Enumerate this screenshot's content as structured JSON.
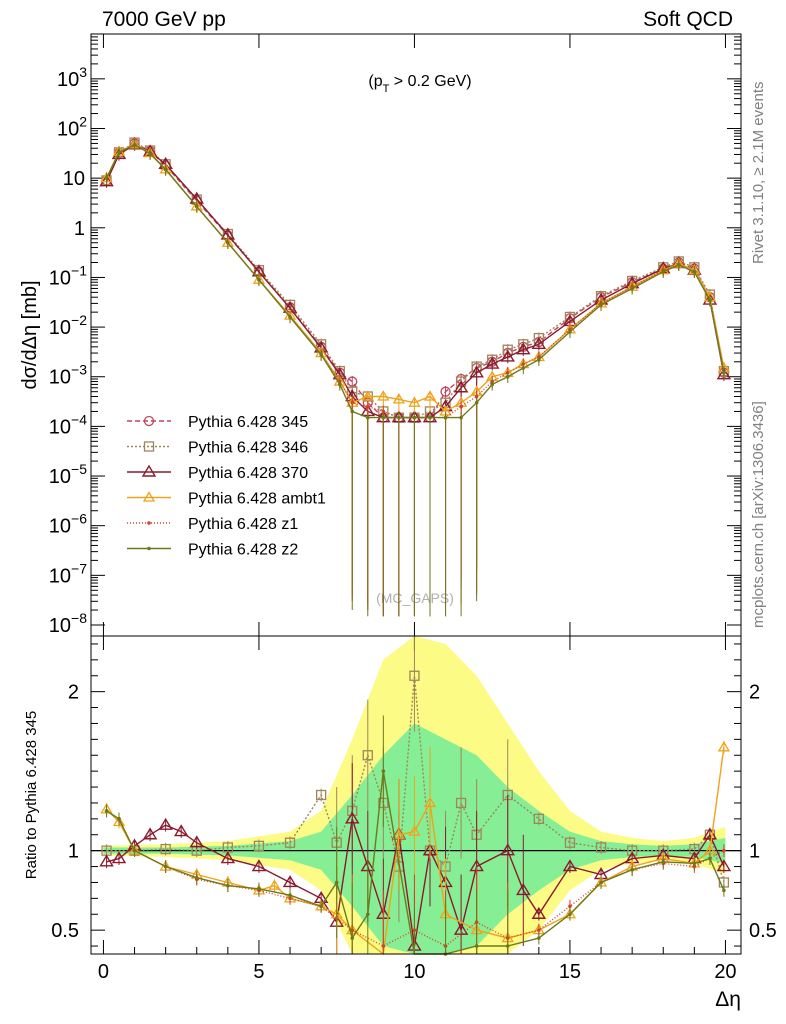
{
  "header": {
    "left": "7000 GeV pp",
    "right": "Soft QCD"
  },
  "side": {
    "rivet": "Rivet 3.1.10, ≥ 2.1M events",
    "source": "mcplots.cern.ch [arXiv:1306.3436]"
  },
  "annotation": {
    "cut_pre": "(p",
    "cut_sub": "T",
    "cut_post": " > 0.2 GeV)",
    "watermark": "(MC_GAPS)"
  },
  "colors": {
    "band_inner": "#86ef96",
    "band_outer": "#fbfb86"
  },
  "chart_data": [
    {
      "type": "line",
      "panel": "main",
      "ylabel": "dσ/dΔη [mb]",
      "yscale": "log",
      "xlim": [
        -0.4,
        20.5
      ],
      "ylim": [
        6e-09,
        8000
      ],
      "ytick_labels": [
        {
          "y": 1000,
          "base": "10",
          "exp": "3"
        },
        {
          "y": 100,
          "base": "10",
          "exp": "2"
        },
        {
          "y": 10,
          "base": "10",
          "exp": ""
        },
        {
          "y": 1,
          "base": "1",
          "exp": ""
        },
        {
          "y": 0.1,
          "base": "10",
          "exp": "−1"
        },
        {
          "y": 0.01,
          "base": "10",
          "exp": "−2"
        },
        {
          "y": 0.001,
          "base": "10",
          "exp": "−3"
        },
        {
          "y": 0.0001,
          "base": "10",
          "exp": "−4"
        },
        {
          "y": 1e-05,
          "base": "10",
          "exp": "−5"
        },
        {
          "y": 1e-06,
          "base": "10",
          "exp": "−6"
        },
        {
          "y": 1e-07,
          "base": "10",
          "exp": "−7"
        },
        {
          "y": 1e-08,
          "base": "10",
          "exp": "−8"
        }
      ],
      "legend_position": "lower-left",
      "series": [
        {
          "name": "Pythia 6.428 345",
          "color": "#c0445e",
          "dash": "5,3",
          "marker": "circle",
          "x": [
            0.1,
            0.5,
            1.0,
            1.5,
            2.0,
            3.0,
            4.0,
            5.0,
            6.0,
            7.0,
            7.6,
            8.0,
            8.5,
            9.0,
            9.5,
            10.0,
            10.5,
            11.0,
            11.5,
            12.0,
            12.5,
            13.0,
            13.5,
            14.0,
            15.0,
            16.0,
            17.0,
            18.0,
            18.5,
            19.0,
            19.5,
            19.95
          ],
          "y": [
            9,
            32,
            50,
            35,
            18,
            3.5,
            0.7,
            0.13,
            0.025,
            0.004,
            0.0012,
            0.0008,
            0.0003,
            0.00015,
            0.00015,
            0.00015,
            0.00015,
            0.0005,
            0.0009,
            0.0015,
            0.002,
            0.003,
            0.004,
            0.005,
            0.015,
            0.04,
            0.08,
            0.15,
            0.2,
            0.15,
            0.04,
            0.0012
          ]
        },
        {
          "name": "Pythia 6.428 346",
          "color": "#a0855a",
          "dash": "2,2",
          "marker": "square",
          "x": [
            0.1,
            0.5,
            1.0,
            1.5,
            2.0,
            3.0,
            4.0,
            5.0,
            6.0,
            7.0,
            7.6,
            8.0,
            8.5,
            9.0,
            9.5,
            10.0,
            10.5,
            11.0,
            11.5,
            12.0,
            12.5,
            13.0,
            13.5,
            14.0,
            15.0,
            16.0,
            17.0,
            18.0,
            18.5,
            19.0,
            19.5,
            19.95
          ],
          "y": [
            9,
            33,
            52,
            36,
            19,
            3.7,
            0.75,
            0.14,
            0.028,
            0.0045,
            0.0013,
            0.0005,
            0.0004,
            0.0002,
            0.00015,
            0.00015,
            0.0002,
            0.0003,
            0.0008,
            0.0016,
            0.0022,
            0.0035,
            0.0045,
            0.006,
            0.016,
            0.042,
            0.085,
            0.16,
            0.21,
            0.16,
            0.045,
            0.0013
          ]
        },
        {
          "name": "Pythia 6.428 370",
          "color": "#8b1a2e",
          "dash": "",
          "marker": "triangle",
          "x": [
            0.1,
            0.5,
            1.0,
            1.5,
            2.0,
            3.0,
            4.0,
            5.0,
            6.0,
            7.0,
            7.6,
            8.0,
            8.5,
            9.0,
            9.5,
            10.0,
            10.5,
            11.0,
            11.5,
            12.0,
            12.5,
            13.0,
            13.5,
            14.0,
            15.0,
            16.0,
            17.0,
            18.0,
            18.5,
            19.0,
            19.5,
            19.95
          ],
          "y": [
            8.5,
            30,
            47,
            34,
            19,
            3.8,
            0.72,
            0.13,
            0.024,
            0.0038,
            0.0011,
            0.0004,
            0.0002,
            0.00015,
            0.00015,
            0.00015,
            0.00015,
            0.00025,
            0.0006,
            0.0012,
            0.0018,
            0.0025,
            0.0035,
            0.0045,
            0.013,
            0.035,
            0.075,
            0.15,
            0.19,
            0.14,
            0.035,
            0.0011
          ]
        },
        {
          "name": "Pythia 6.428 ambt1",
          "color": "#f0a21a",
          "dash": "",
          "marker": "triangle-small",
          "x": [
            0.1,
            0.5,
            1.0,
            1.5,
            2.0,
            3.0,
            4.0,
            5.0,
            6.0,
            7.0,
            7.6,
            8.0,
            8.5,
            9.0,
            9.5,
            10.0,
            10.5,
            11.0,
            11.5,
            12.0,
            12.5,
            13.0,
            13.5,
            14.0,
            15.0,
            16.0,
            17.0,
            18.0,
            18.5,
            19.0,
            19.5,
            19.95
          ],
          "y": [
            10,
            34,
            48,
            32,
            15,
            2.7,
            0.5,
            0.09,
            0.017,
            0.003,
            0.0008,
            0.0003,
            0.0004,
            0.0004,
            0.00035,
            0.0003,
            0.0004,
            0.0002,
            0.0003,
            0.0005,
            0.001,
            0.0012,
            0.0018,
            0.0025,
            0.009,
            0.03,
            0.065,
            0.14,
            0.19,
            0.14,
            0.04,
            0.0015
          ]
        },
        {
          "name": "Pythia 6.428 z1",
          "color": "#d8402a",
          "dash": "1,2",
          "marker": "dot",
          "x": [
            0.1,
            0.5,
            1.0,
            1.5,
            2.0,
            3.0,
            4.0,
            5.0,
            6.0,
            7.0,
            7.6,
            8.0,
            8.5,
            9.0,
            9.5,
            10.0,
            10.5,
            11.0,
            11.5,
            12.0,
            12.5,
            13.0,
            13.5,
            14.0,
            15.0,
            16.0,
            17.0,
            18.0,
            18.5,
            19.0,
            19.5,
            19.95
          ],
          "y": [
            10,
            33,
            47,
            31,
            15,
            2.7,
            0.5,
            0.09,
            0.016,
            0.0028,
            0.0008,
            0.0003,
            0.00025,
            0.0002,
            0.00015,
            0.00015,
            0.00015,
            0.00015,
            0.00025,
            0.0004,
            0.0008,
            0.0012,
            0.0018,
            0.0025,
            0.009,
            0.03,
            0.065,
            0.14,
            0.18,
            0.13,
            0.035,
            0.0012
          ]
        },
        {
          "name": "Pythia 6.428 z2",
          "color": "#6e7a1a",
          "dash": "",
          "marker": "dot",
          "x": [
            0.1,
            0.5,
            1.0,
            1.5,
            2.0,
            3.0,
            4.0,
            5.0,
            6.0,
            7.0,
            7.6,
            8.0,
            8.5,
            9.0,
            9.5,
            10.0,
            10.5,
            11.0,
            11.5,
            12.0,
            12.5,
            13.0,
            13.5,
            14.0,
            15.0,
            16.0,
            17.0,
            18.0,
            18.5,
            19.0,
            19.5,
            19.95
          ],
          "y": [
            10,
            33,
            47,
            31,
            15,
            2.7,
            0.5,
            0.09,
            0.016,
            0.0028,
            0.0007,
            0.0002,
            0.00015,
            0.00015,
            0.00015,
            0.00015,
            0.00015,
            0.00015,
            0.00015,
            0.0003,
            0.0007,
            0.001,
            0.0015,
            0.0022,
            0.008,
            0.028,
            0.06,
            0.13,
            0.18,
            0.13,
            0.035,
            0.0012
          ]
        }
      ]
    },
    {
      "type": "line",
      "panel": "ratio",
      "xlabel": "Δη",
      "ylabel": "Ratio to Pythia 6.428 345",
      "xlim": [
        -0.4,
        20.5
      ],
      "ylim": [
        0.35,
        2.35
      ],
      "xticks": [
        0,
        5,
        10,
        15,
        20
      ],
      "yticks": [
        0.5,
        1,
        2
      ],
      "ytick_labels": [
        "0.5",
        "1",
        "2"
      ],
      "reference_line": 1,
      "band": {
        "x": [
          0,
          2,
          4,
          6,
          7,
          8,
          9,
          10,
          11,
          12,
          13,
          14,
          15,
          16,
          17,
          18,
          19,
          20
        ],
        "inner": [
          0.02,
          0.02,
          0.03,
          0.06,
          0.12,
          0.35,
          0.6,
          0.8,
          0.7,
          0.6,
          0.4,
          0.25,
          0.12,
          0.06,
          0.04,
          0.03,
          0.04,
          0.08
        ],
        "outer": [
          0.03,
          0.04,
          0.06,
          0.12,
          0.25,
          0.7,
          1.2,
          1.4,
          1.3,
          1.1,
          0.8,
          0.5,
          0.25,
          0.12,
          0.08,
          0.06,
          0.08,
          0.15
        ]
      },
      "series": [
        {
          "name": "Pythia 6.428 346",
          "x": [
            0.1,
            1,
            2,
            3,
            4,
            5,
            6,
            7,
            7.5,
            8,
            8.5,
            9,
            9.5,
            10,
            10.5,
            11,
            11.5,
            12,
            13,
            14,
            15,
            16,
            17,
            18,
            19,
            19.5,
            19.95
          ],
          "y": [
            1.0,
            1.0,
            1.01,
            1.0,
            1.02,
            1.03,
            1.05,
            1.35,
            1.05,
            1.25,
            1.6,
            1.3,
            0.9,
            2.1,
            1.0,
            0.9,
            1.3,
            1.1,
            1.35,
            1.2,
            1.05,
            1.02,
            1.0,
            1.0,
            1.01,
            1.1,
            0.8
          ]
        },
        {
          "name": "Pythia 6.428 370",
          "x": [
            0.1,
            0.5,
            1,
            1.5,
            2,
            2.5,
            3,
            4,
            5,
            6,
            7,
            7.5,
            8,
            8.5,
            9,
            9.5,
            10,
            10.5,
            11,
            11.5,
            12,
            13,
            13.5,
            14,
            15,
            16,
            17,
            18,
            19,
            19.5,
            19.95
          ],
          "y": [
            0.93,
            0.95,
            1.03,
            1.1,
            1.16,
            1.12,
            1.05,
            0.95,
            0.9,
            0.8,
            0.7,
            0.55,
            1.2,
            0.9,
            0.6,
            1.1,
            0.4,
            1.0,
            0.8,
            0.5,
            0.9,
            1.0,
            0.75,
            0.6,
            0.9,
            0.85,
            0.95,
            0.97,
            0.95,
            1.1,
            0.9
          ]
        },
        {
          "name": "Pythia 6.428 ambt1",
          "x": [
            0.1,
            0.5,
            1,
            2,
            3,
            4,
            5,
            5.5,
            6,
            7,
            7.5,
            8,
            9,
            9.5,
            10,
            10.5,
            11,
            12,
            13,
            14,
            15,
            16,
            17,
            18,
            19,
            19.5,
            19.95
          ],
          "y": [
            1.26,
            1.18,
            1.0,
            0.9,
            0.85,
            0.8,
            0.75,
            0.78,
            0.7,
            0.65,
            0.6,
            0.5,
            0.3,
            1.1,
            1.12,
            1.3,
            0.6,
            0.5,
            0.45,
            0.5,
            0.6,
            0.8,
            0.9,
            0.95,
            0.92,
            1.0,
            1.65
          ]
        },
        {
          "name": "Pythia 6.428 z1",
          "x": [
            0.1,
            0.5,
            1,
            2,
            3,
            4,
            5,
            6,
            7,
            8,
            9,
            10,
            11,
            12,
            13,
            14,
            15,
            16,
            17,
            18,
            19,
            19.95
          ],
          "y": [
            1.25,
            1.2,
            1.0,
            0.9,
            0.82,
            0.78,
            0.75,
            0.7,
            0.65,
            0.5,
            0.4,
            0.5,
            0.4,
            0.55,
            0.45,
            0.5,
            0.65,
            0.8,
            0.88,
            0.92,
            0.9,
            1.0
          ]
        },
        {
          "name": "Pythia 6.428 z2",
          "x": [
            0.1,
            0.5,
            1,
            2,
            3,
            4,
            5,
            6,
            7,
            7.5,
            8,
            8.5,
            9,
            10,
            11,
            12,
            13,
            14,
            15,
            16,
            17,
            18,
            19,
            19.5,
            19.95
          ],
          "y": [
            1.25,
            1.2,
            1.0,
            0.9,
            0.83,
            0.78,
            0.76,
            0.72,
            0.65,
            0.8,
            0.45,
            0.6,
            1.5,
            0.3,
            0.35,
            0.4,
            0.4,
            0.45,
            0.6,
            0.8,
            0.88,
            0.93,
            0.92,
            0.95,
            0.75
          ]
        }
      ]
    }
  ]
}
